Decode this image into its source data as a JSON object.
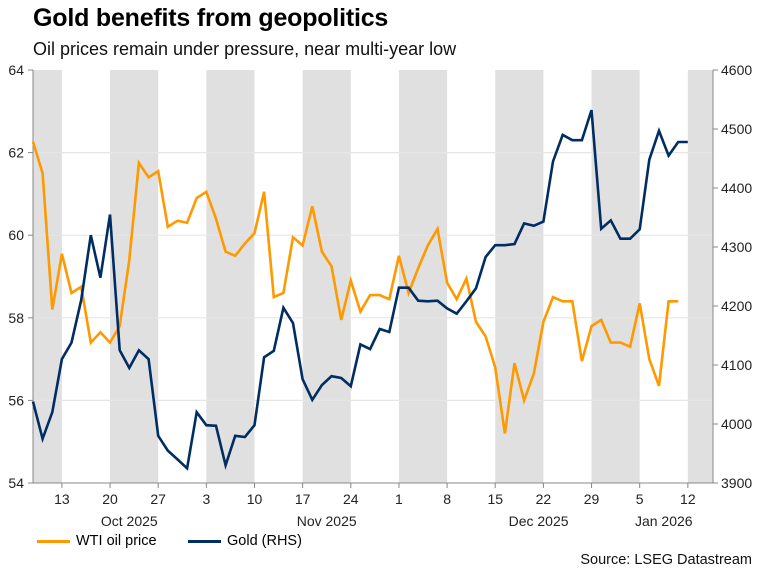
{
  "title": "Gold benefits from geopolitics",
  "subtitle": "Oil prices remain under pressure, near multi-year low",
  "source": "Source: LSEG Datastream",
  "colors": {
    "oil": "#FF9900",
    "gold": "#002D62",
    "band": "#E0E0E0",
    "grid": "#E6E6E6",
    "axis": "#888888"
  },
  "chart_data": {
    "type": "line",
    "title": "Gold benefits from geopolitics",
    "subtitle": "Oil prices remain under pressure, near multi-year low",
    "xlabel": "",
    "ylabel_left": "",
    "ylabel_right": "",
    "y_left_lim": [
      54,
      64
    ],
    "y_left_ticks": [
      "54",
      "56",
      "58",
      "60",
      "62",
      "64"
    ],
    "y_right_lim": [
      3900,
      4600
    ],
    "y_right_ticks": [
      "3900",
      "4000",
      "4100",
      "4200",
      "4300",
      "4400",
      "4500",
      "4600"
    ],
    "x_range_business_days": [
      0,
      70
    ],
    "x_ticks": [
      {
        "index": 3,
        "label": "13"
      },
      {
        "index": 8,
        "label": "20"
      },
      {
        "index": 13,
        "label": "27"
      },
      {
        "index": 18,
        "label": "3"
      },
      {
        "index": 23,
        "label": "10"
      },
      {
        "index": 28,
        "label": "17"
      },
      {
        "index": 33,
        "label": "24"
      },
      {
        "index": 38,
        "label": "1"
      },
      {
        "index": 43,
        "label": "8"
      },
      {
        "index": 48,
        "label": "15"
      },
      {
        "index": 53,
        "label": "22"
      },
      {
        "index": 58,
        "label": "29"
      },
      {
        "index": 63,
        "label": "5"
      },
      {
        "index": 68,
        "label": "12"
      }
    ],
    "months": [
      {
        "index": 10,
        "label": "Oct 2025"
      },
      {
        "index": 30.5,
        "label": "Nov 2025"
      },
      {
        "index": 52.5,
        "label": "Dec 2025"
      },
      {
        "index": 65.5,
        "label": "Jan 2026"
      }
    ],
    "shaded_weeks_start_index": [
      -2,
      8,
      18,
      28,
      38,
      48,
      58,
      68
    ],
    "grid": true,
    "legend_position": "bottom-left",
    "series": [
      {
        "name": "WTI oil price",
        "axis": "left",
        "values": [
          62.26,
          61.5,
          58.2,
          59.55,
          58.6,
          58.75,
          57.4,
          57.65,
          57.4,
          57.8,
          59.4,
          61.75,
          61.4,
          61.55,
          60.2,
          60.35,
          60.3,
          60.9,
          61.05,
          60.4,
          59.6,
          59.5,
          59.8,
          60.05,
          61.05,
          58.5,
          58.6,
          59.95,
          59.75,
          60.7,
          59.6,
          59.25,
          57.95,
          58.9,
          58.15,
          58.55,
          58.55,
          58.45,
          59.5,
          58.6,
          59.2,
          59.75,
          60.15,
          58.85,
          58.45,
          58.95,
          57.9,
          57.55,
          56.8,
          55.2,
          56.9,
          56.0,
          56.65,
          57.9,
          58.5,
          58.4,
          58.4,
          56.95,
          57.8,
          57.95,
          57.4,
          57.4,
          57.3,
          58.35,
          57.0,
          56.35,
          58.4,
          58.4
        ]
      },
      {
        "name": "Gold (RHS)",
        "axis": "right",
        "values": [
          4038,
          3975,
          4020,
          4110,
          4138,
          4210,
          4320,
          4248,
          4355,
          4125,
          4095,
          4125,
          4110,
          3980,
          3955,
          3940,
          3925,
          4020,
          3998,
          3997,
          3930,
          3980,
          3978,
          3998,
          4113,
          4124,
          4197,
          4171,
          4076,
          4041,
          4066,
          4081,
          4078,
          4064,
          4135,
          4127,
          4161,
          4156,
          4231,
          4231,
          4209,
          4208,
          4209,
          4196,
          4187,
          4208,
          4230,
          4283,
          4303,
          4303,
          4305,
          4340,
          4336,
          4343,
          4445,
          4490,
          4481,
          4481,
          4532,
          4331,
          4345,
          4314,
          4314,
          4330,
          4448,
          4497,
          4455,
          4478,
          4478
        ]
      }
    ]
  },
  "legend": {
    "items": [
      {
        "label": "WTI oil price",
        "color": "#FF9900"
      },
      {
        "label": "Gold (RHS)",
        "color": "#002D62"
      }
    ]
  }
}
